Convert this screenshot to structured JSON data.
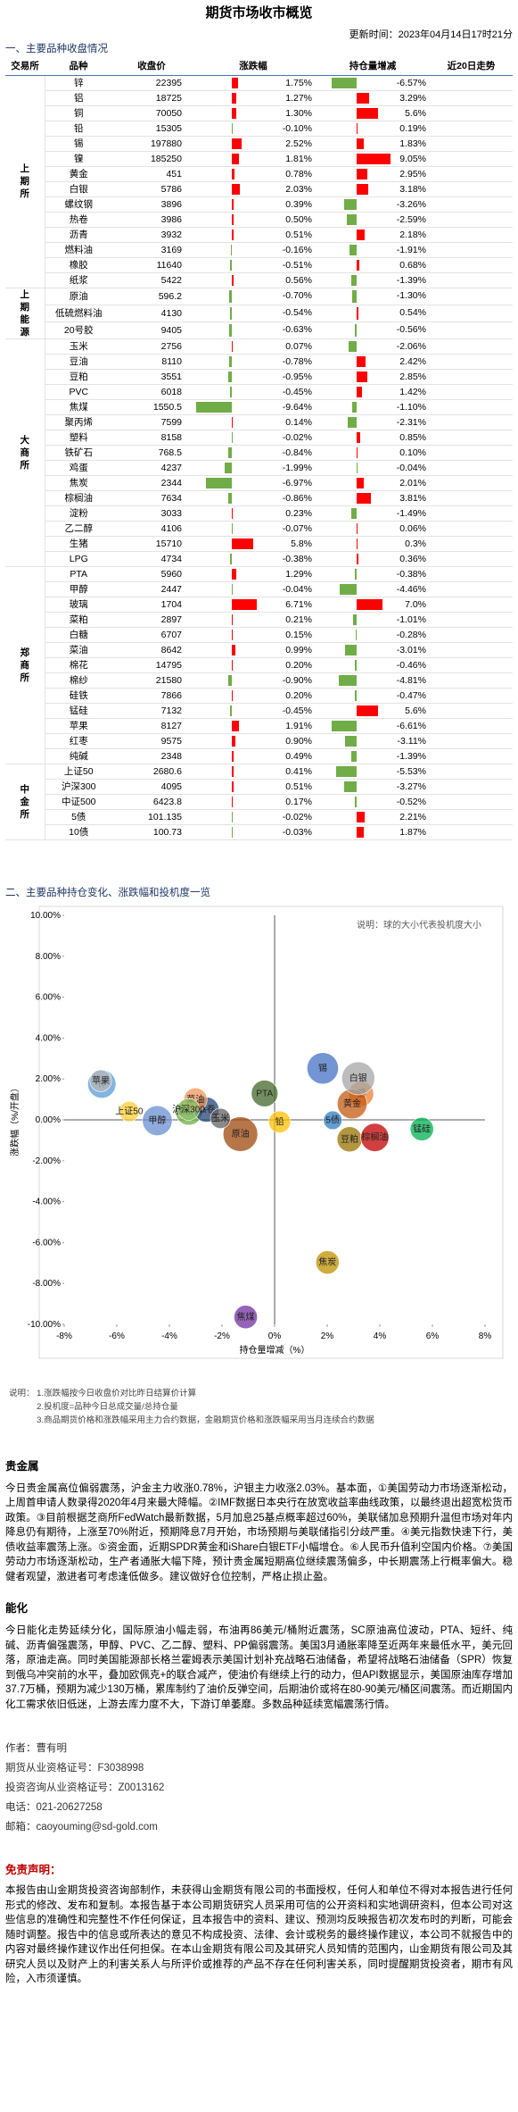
{
  "header": {
    "title": "期货市场收市概览",
    "updated": "更新时间：2023年04月14日17时21分"
  },
  "section1": "一、主要品种收盘情况",
  "table": {
    "columns": [
      "交易所",
      "品种",
      "收盘价",
      "涨跌幅",
      "持仓量增减",
      "近20日走势"
    ],
    "up_color": "#ff0000",
    "down_color": "#70ad47",
    "groups": [
      {
        "exchange": "上期所",
        "rows": [
          [
            "锌",
            "22395",
            1.75,
            "1.75%",
            -6.57,
            "-6.57%"
          ],
          [
            "铝",
            "18725",
            1.27,
            "1.27%",
            3.29,
            "3.29%"
          ],
          [
            "铜",
            "70050",
            1.3,
            "1.30%",
            5.6,
            "5.6%"
          ],
          [
            "铅",
            "15305",
            -0.1,
            "-0.10%",
            0.19,
            "0.19%"
          ],
          [
            "锡",
            "197880",
            2.52,
            "2.52%",
            1.83,
            "1.83%"
          ],
          [
            "镍",
            "185250",
            1.81,
            "1.81%",
            9.05,
            "9.05%"
          ],
          [
            "黄金",
            "451",
            0.78,
            "0.78%",
            2.95,
            "2.95%"
          ],
          [
            "白银",
            "5786",
            2.03,
            "2.03%",
            3.18,
            "3.18%"
          ],
          [
            "螺纹钢",
            "3896",
            0.39,
            "0.39%",
            -3.26,
            "-3.26%"
          ],
          [
            "热卷",
            "3986",
            0.5,
            "0.50%",
            -2.59,
            "-2.59%"
          ],
          [
            "沥青",
            "3932",
            0.51,
            "0.51%",
            2.18,
            "2.18%"
          ],
          [
            "燃料油",
            "3169",
            -0.16,
            "-0.16%",
            -1.91,
            "-1.91%"
          ],
          [
            "橡胶",
            "11640",
            -0.51,
            "-0.51%",
            0.68,
            "0.68%"
          ],
          [
            "纸浆",
            "5422",
            0.56,
            "0.56%",
            -1.39,
            "-1.39%"
          ]
        ]
      },
      {
        "exchange": "上期能源",
        "rows": [
          [
            "原油",
            "596.2",
            -0.7,
            "-0.70%",
            -1.3,
            "-1.30%"
          ],
          [
            "低硫燃料油",
            "4130",
            -0.54,
            "-0.54%",
            0.54,
            "0.54%"
          ],
          [
            "20号胶",
            "9405",
            -0.63,
            "-0.63%",
            -0.56,
            "-0.56%"
          ]
        ]
      },
      {
        "exchange": "大商所",
        "rows": [
          [
            "玉米",
            "2756",
            0.07,
            "0.07%",
            -2.06,
            "-2.06%"
          ],
          [
            "豆油",
            "8110",
            -0.78,
            "-0.78%",
            2.42,
            "2.42%"
          ],
          [
            "豆粕",
            "3551",
            -0.95,
            "-0.95%",
            2.85,
            "2.85%"
          ],
          [
            "PVC",
            "6018",
            -0.45,
            "-0.45%",
            1.42,
            "1.42%"
          ],
          [
            "焦煤",
            "1550.5",
            -9.64,
            "-9.64%",
            -1.1,
            "-1.10%"
          ],
          [
            "聚丙烯",
            "7599",
            0.14,
            "0.14%",
            -2.31,
            "-2.31%"
          ],
          [
            "塑料",
            "8158",
            -0.02,
            "-0.02%",
            0.85,
            "0.85%"
          ],
          [
            "铁矿石",
            "768.5",
            -0.84,
            "-0.84%",
            0.1,
            "0.10%"
          ],
          [
            "鸡蛋",
            "4237",
            -1.99,
            "-1.99%",
            -0.04,
            "-0.04%"
          ],
          [
            "焦炭",
            "2344",
            -6.97,
            "-6.97%",
            2.01,
            "2.01%"
          ],
          [
            "棕榈油",
            "7634",
            -0.86,
            "-0.86%",
            3.81,
            "3.81%"
          ],
          [
            "淀粉",
            "3033",
            0.23,
            "0.23%",
            -1.49,
            "-1.49%"
          ],
          [
            "乙二醇",
            "4106",
            -0.07,
            "-0.07%",
            0.06,
            "0.06%"
          ],
          [
            "生猪",
            "15710",
            5.8,
            "5.8%",
            0.3,
            "0.3%"
          ],
          [
            "LPG",
            "4734",
            -0.38,
            "-0.38%",
            0.36,
            "0.36%"
          ]
        ]
      },
      {
        "exchange": "郑商所",
        "rows": [
          [
            "PTA",
            "5960",
            1.29,
            "1.29%",
            -0.38,
            "-0.38%"
          ],
          [
            "甲醇",
            "2447",
            -0.04,
            "-0.04%",
            -4.46,
            "-4.46%"
          ],
          [
            "玻璃",
            "1704",
            6.71,
            "6.71%",
            7.0,
            "7.0%"
          ],
          [
            "菜粕",
            "2897",
            0.21,
            "0.21%",
            -1.01,
            "-1.01%"
          ],
          [
            "白糖",
            "6707",
            0.15,
            "0.15%",
            -0.28,
            "-0.28%"
          ],
          [
            "菜油",
            "8642",
            0.99,
            "0.99%",
            -3.01,
            "-3.01%"
          ],
          [
            "棉花",
            "14795",
            0.2,
            "0.20%",
            -0.46,
            "-0.46%"
          ],
          [
            "棉纱",
            "21580",
            -0.9,
            "-0.90%",
            -4.81,
            "-4.81%"
          ],
          [
            "硅铁",
            "7866",
            0.2,
            "0.20%",
            -0.47,
            "-0.47%"
          ],
          [
            "锰硅",
            "7132",
            -0.45,
            "-0.45%",
            5.6,
            "5.6%"
          ],
          [
            "苹果",
            "8127",
            1.91,
            "1.91%",
            -6.61,
            "-6.61%"
          ],
          [
            "红枣",
            "9575",
            0.9,
            "0.90%",
            -3.11,
            "-3.11%"
          ],
          [
            "纯碱",
            "2348",
            0.49,
            "0.49%",
            -1.39,
            "-1.39%"
          ]
        ]
      },
      {
        "exchange": "中金所",
        "rows": [
          [
            "上证50",
            "2680.6",
            0.41,
            "0.41%",
            -5.53,
            "-5.53%"
          ],
          [
            "沪深300",
            "4095",
            0.51,
            "0.51%",
            -3.27,
            "-3.27%"
          ],
          [
            "中证500",
            "6423.8",
            0.17,
            "0.17%",
            -0.52,
            "-0.52%"
          ],
          [
            "5债",
            "101.135",
            -0.02,
            "-0.02%",
            2.21,
            "2.21%"
          ],
          [
            "10债",
            "100.73",
            -0.03,
            "-0.03%",
            1.87,
            "1.87%"
          ]
        ]
      }
    ]
  },
  "section2": "二、主要品种持仓变化、涨跌幅和投机度一览",
  "chart_data": {
    "type": "bubble",
    "note": "说明：球的大小代表投机度大小",
    "xlabel": "持仓量增减（%）",
    "ylabel": "涨跌幅（%/开盘）",
    "xlim": [
      -8,
      8
    ],
    "ylim": [
      -10,
      10
    ],
    "xticks": [
      {
        "value": -8,
        "label": "-8%"
      },
      {
        "value": -6,
        "label": "-6%"
      },
      {
        "value": -4,
        "label": "-4%"
      },
      {
        "value": -2,
        "label": "-2%"
      },
      {
        "value": 0,
        "label": "0%"
      },
      {
        "value": 2,
        "label": "2%"
      },
      {
        "value": 4,
        "label": "4%"
      },
      {
        "value": 6,
        "label": "6%"
      },
      {
        "value": 8,
        "label": "8%"
      }
    ],
    "yticks": [
      {
        "value": -10,
        "label": "-10.00%"
      },
      {
        "value": -8,
        "label": "-8.00%"
      },
      {
        "value": -6,
        "label": "-6.00%"
      },
      {
        "value": -4,
        "label": "-4.00%"
      },
      {
        "value": -2,
        "label": "-2.00%"
      },
      {
        "value": 0,
        "label": "0.00%"
      },
      {
        "value": 2,
        "label": "2.00%"
      },
      {
        "value": 4,
        "label": "4.00%"
      },
      {
        "value": 6,
        "label": "6.00%"
      },
      {
        "value": 8,
        "label": "8.00%"
      },
      {
        "value": 10,
        "label": "10.00%"
      }
    ],
    "points": [
      {
        "name": "锌",
        "x": -6.57,
        "y": 1.75,
        "size": 1.2,
        "color": "#5b9bd5"
      },
      {
        "name": "铝",
        "x": 3.29,
        "y": 1.27,
        "size": 1.0,
        "color": "#ed7d31"
      },
      {
        "name": "锡",
        "x": 1.83,
        "y": 2.52,
        "size": 1.4,
        "color": "#4472c4"
      },
      {
        "name": "黄金",
        "x": 2.95,
        "y": 0.78,
        "size": 1.3,
        "color": "#c55a11"
      },
      {
        "name": "白银",
        "x": 3.18,
        "y": 2.03,
        "size": 1.5,
        "color": "#a5a5a5"
      },
      {
        "name": "铅",
        "x": 0.19,
        "y": -0.1,
        "size": 0.8,
        "color": "#ffc000"
      },
      {
        "name": "螺纹钢",
        "x": -3.26,
        "y": 0.39,
        "size": 1.1,
        "color": "#70ad47"
      },
      {
        "name": "热卷",
        "x": -2.59,
        "y": 0.5,
        "size": 1.0,
        "color": "#264478"
      },
      {
        "name": "原油",
        "x": -1.3,
        "y": -0.7,
        "size": 1.6,
        "color": "#9e480e"
      },
      {
        "name": "玉米",
        "x": -2.06,
        "y": 0.07,
        "size": 0.7,
        "color": "#636363"
      },
      {
        "name": "豆粕",
        "x": 2.85,
        "y": -0.95,
        "size": 1.0,
        "color": "#997300"
      },
      {
        "name": "焦煤",
        "x": -1.1,
        "y": -9.64,
        "size": 0.9,
        "color": "#7030a0"
      },
      {
        "name": "焦炭",
        "x": 2.01,
        "y": -6.97,
        "size": 0.9,
        "color": "#bf9000"
      },
      {
        "name": "棕榈油",
        "x": 3.81,
        "y": -0.86,
        "size": 1.2,
        "color": "#c00000"
      },
      {
        "name": "PTA",
        "x": -0.38,
        "y": 1.29,
        "size": 1.1,
        "color": "#43682b"
      },
      {
        "name": "甲醇",
        "x": -4.46,
        "y": -0.04,
        "size": 1.3,
        "color": "#698ed0"
      },
      {
        "name": "菜油",
        "x": -3.01,
        "y": 0.99,
        "size": 0.9,
        "color": "#f1975a"
      },
      {
        "name": "苹果",
        "x": -6.61,
        "y": 1.91,
        "size": 0.8,
        "color": "#b7b7b7"
      },
      {
        "name": "上证50",
        "x": -5.53,
        "y": 0.41,
        "size": 0.7,
        "color": "#ffcd33"
      },
      {
        "name": "沪深300",
        "x": -3.27,
        "y": 0.51,
        "size": 0.8,
        "color": "#8cc168"
      },
      {
        "name": "5债",
        "x": 2.21,
        "y": -0.02,
        "size": 0.6,
        "color": "#327dc2"
      },
      {
        "name": "锰硅",
        "x": 5.6,
        "y": -0.45,
        "size": 0.9,
        "color": "#00b050"
      }
    ]
  },
  "notes_label": "说明：",
  "notes": [
    "1.涨跌幅按今日收盘价对比昨日结算价计算",
    "2.投机度=品种今日总成交量/总持仓量",
    "3.商品期货价格和涨跌幅采用主力合约数据，金融期货价格和涨跌幅采用当月连续合约数据"
  ],
  "sections": [
    {
      "title": "贵金属",
      "text": "今日贵金属高位偏弱震荡，沪金主力收涨0.78%，沪银主力收涨2.03%。基本面，①美国劳动力市场逐渐松动，上周首申请人数录得2020年4月来最大降幅。②IMF数据日本央行在放宽收益率曲线政策，以最终退出超宽松货币政策。③目前根据芝商所FedWatch最新数据，5月加息25基点概率超过60%，美联储加息预期升温但市场对年内降息仍有期待，上涨至70%附近，预期降息7月开始，市场预期与美联储指引分歧严重。④美元指数快速下行，美债收益率震荡上涨。⑤资金面，近期SPDR黄金和iShare白银ETF小幅增仓。⑥人民币升值利空国内价格。⑦美国劳动力市场逐渐松动，生产者通胀大幅下降，预计贵金属短期高位继续震荡偏多，中长期震荡上行概率偏大。稳健者观望，激进者可考虑逢低做多。建议做好仓位控制，严格止损止盈。"
    },
    {
      "title": "能化",
      "text": "今日能化走势延续分化，国际原油小幅走弱，布油再86美元/桶附近震荡，SC原油高位波动，PTA、短纤、纯碱、沥青偏强震荡，甲醇、PVC、乙二醇、塑料、PP偏弱震荡。美国3月通胀率降至近两年来最低水平，美元回落，原油走高。同时美国能源部长格兰霍姆表示美国计划补充战略石油储备，希望将战略石油储备（SPR）恢复到俄乌冲突前的水平，叠加欧佩克+的联合减产，使油价有继续上行的动力，但API数据显示，美国原油库存增加37.7万桶，预期为减少130万桶，累库制约了油价反弹空间，后期油价或将在80-90美元/桶区间震荡。而近期国内化工需求依旧低迷，上游去库力度不大，下游订单萎靡。多数品种延续宽幅震荡行情。"
    }
  ],
  "author": [
    "作者：曹有明",
    "期货从业资格证号：F3038998",
    "投资咨询从业资格证号：Z0013162",
    "电话：021-20627258",
    "邮箱：caoyouming@sd-gold.com"
  ],
  "disclaimer": {
    "title": "免责声明：",
    "text": "本报告由山金期货投资咨询部制作，未获得山金期货有限公司的书面授权，任何人和单位不得对本报告进行任何形式的修改、发布和复制。本报告基于本公司期货研究人员采用可信的公开资料和实地调研资料，但本公司对这些信息的准确性和完整性不作任何保证，且本报告中的资料、建议、预测均反映报告初次发布时的判断，可能会随时调整。报告中的信息或所表达的意见不构成投资、法律、会计或税务的最终操作建议，本公司不就报告中的内容对最终操作建议作出任何担保。在本山金期货有限公司及其研究人员知情的范围内，山金期货有限公司及其研究人员以及财产上的利害关系人与所评价或推荐的产品不存在任何利害关系，同时提醒期货投资者，期市有风险，入市须谨慎。"
  }
}
